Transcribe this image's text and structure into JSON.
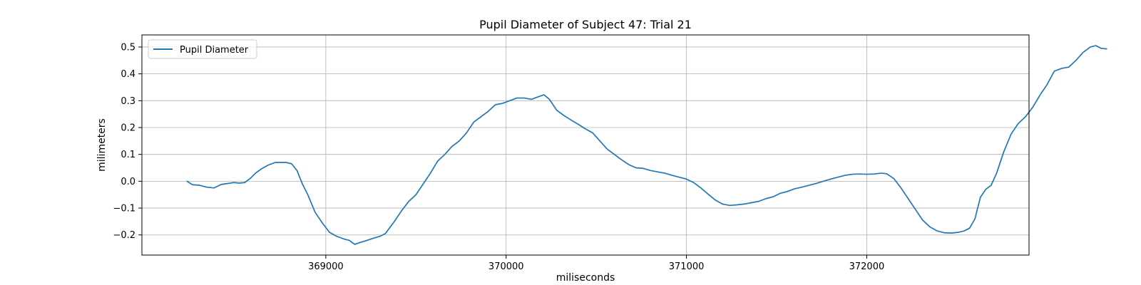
{
  "chart_data": {
    "type": "line",
    "title": "Pupil Diameter of Subject 47: Trial 21",
    "xlabel": "miliseconds",
    "ylabel": "milimeters",
    "xlim": [
      367980,
      372900
    ],
    "ylim": [
      -0.275,
      0.545
    ],
    "xticks": [
      369000,
      370000,
      371000,
      372000
    ],
    "yticks": [
      -0.2,
      -0.1,
      0.0,
      0.1,
      0.2,
      0.3,
      0.4,
      0.5
    ],
    "ytick_labels": [
      "−0.2",
      "−0.1",
      "0.0",
      "0.1",
      "0.2",
      "0.3",
      "0.4",
      "0.5"
    ],
    "grid": true,
    "legend": {
      "placement": "upper-left"
    },
    "series": [
      {
        "name": "Pupil Diameter",
        "color": "#1f77b4",
        "points": [
          [
            368230,
            0.0
          ],
          [
            368260,
            -0.013
          ],
          [
            368300,
            -0.015
          ],
          [
            368340,
            -0.022
          ],
          [
            368380,
            -0.025
          ],
          [
            368420,
            -0.012
          ],
          [
            368460,
            -0.008
          ],
          [
            368490,
            -0.005
          ],
          [
            368520,
            -0.007
          ],
          [
            368550,
            -0.005
          ],
          [
            368580,
            0.01
          ],
          [
            368610,
            0.03
          ],
          [
            368640,
            0.045
          ],
          [
            368680,
            0.06
          ],
          [
            368720,
            0.07
          ],
          [
            368780,
            0.07
          ],
          [
            368810,
            0.065
          ],
          [
            368840,
            0.04
          ],
          [
            368870,
            -0.01
          ],
          [
            368900,
            -0.05
          ],
          [
            368940,
            -0.115
          ],
          [
            368980,
            -0.155
          ],
          [
            369020,
            -0.19
          ],
          [
            369060,
            -0.205
          ],
          [
            369100,
            -0.215
          ],
          [
            369130,
            -0.22
          ],
          [
            369160,
            -0.235
          ],
          [
            369190,
            -0.228
          ],
          [
            369220,
            -0.222
          ],
          [
            369260,
            -0.213
          ],
          [
            369300,
            -0.205
          ],
          [
            369330,
            -0.195
          ],
          [
            369380,
            -0.15
          ],
          [
            369420,
            -0.11
          ],
          [
            369460,
            -0.075
          ],
          [
            369500,
            -0.05
          ],
          [
            369540,
            -0.01
          ],
          [
            369580,
            0.03
          ],
          [
            369620,
            0.075
          ],
          [
            369660,
            0.1
          ],
          [
            369700,
            0.13
          ],
          [
            369740,
            0.15
          ],
          [
            369780,
            0.18
          ],
          [
            369820,
            0.22
          ],
          [
            369860,
            0.24
          ],
          [
            369900,
            0.26
          ],
          [
            369940,
            0.285
          ],
          [
            369980,
            0.29
          ],
          [
            370020,
            0.3
          ],
          [
            370060,
            0.31
          ],
          [
            370100,
            0.31
          ],
          [
            370140,
            0.305
          ],
          [
            370180,
            0.315
          ],
          [
            370210,
            0.322
          ],
          [
            370240,
            0.305
          ],
          [
            370280,
            0.265
          ],
          [
            370320,
            0.245
          ],
          [
            370360,
            0.228
          ],
          [
            370400,
            0.212
          ],
          [
            370440,
            0.195
          ],
          [
            370480,
            0.18
          ],
          [
            370520,
            0.15
          ],
          [
            370560,
            0.12
          ],
          [
            370600,
            0.1
          ],
          [
            370640,
            0.08
          ],
          [
            370680,
            0.062
          ],
          [
            370720,
            0.05
          ],
          [
            370760,
            0.048
          ],
          [
            370800,
            0.04
          ],
          [
            370840,
            0.035
          ],
          [
            370880,
            0.03
          ],
          [
            370920,
            0.022
          ],
          [
            370960,
            0.015
          ],
          [
            371000,
            0.008
          ],
          [
            371040,
            -0.005
          ],
          [
            371080,
            -0.025
          ],
          [
            371120,
            -0.048
          ],
          [
            371160,
            -0.07
          ],
          [
            371200,
            -0.085
          ],
          [
            371240,
            -0.09
          ],
          [
            371280,
            -0.088
          ],
          [
            371320,
            -0.085
          ],
          [
            371360,
            -0.08
          ],
          [
            371400,
            -0.075
          ],
          [
            371440,
            -0.065
          ],
          [
            371480,
            -0.058
          ],
          [
            371520,
            -0.045
          ],
          [
            371560,
            -0.038
          ],
          [
            371600,
            -0.028
          ],
          [
            371640,
            -0.022
          ],
          [
            371680,
            -0.015
          ],
          [
            371720,
            -0.008
          ],
          [
            371760,
            0.0
          ],
          [
            371800,
            0.008
          ],
          [
            371840,
            0.015
          ],
          [
            371880,
            0.022
          ],
          [
            371920,
            0.026
          ],
          [
            371960,
            0.027
          ],
          [
            372000,
            0.026
          ],
          [
            372040,
            0.027
          ],
          [
            372080,
            0.03
          ],
          [
            372110,
            0.028
          ],
          [
            372150,
            0.01
          ],
          [
            372190,
            -0.025
          ],
          [
            372230,
            -0.065
          ],
          [
            372270,
            -0.105
          ],
          [
            372310,
            -0.145
          ],
          [
            372350,
            -0.17
          ],
          [
            372390,
            -0.185
          ],
          [
            372430,
            -0.192
          ],
          [
            372470,
            -0.193
          ],
          [
            372510,
            -0.19
          ],
          [
            372540,
            -0.185
          ],
          [
            372570,
            -0.175
          ],
          [
            372600,
            -0.14
          ],
          [
            372630,
            -0.06
          ],
          [
            372660,
            -0.03
          ],
          [
            372690,
            -0.015
          ],
          [
            372720,
            0.03
          ],
          [
            372760,
            0.11
          ],
          [
            372800,
            0.175
          ],
          [
            372840,
            0.215
          ],
          [
            372880,
            0.24
          ],
          [
            372920,
            0.275
          ],
          [
            372960,
            0.32
          ],
          [
            373000,
            0.36
          ],
          [
            373040,
            0.41
          ],
          [
            373080,
            0.42
          ],
          [
            373120,
            0.425
          ],
          [
            373160,
            0.45
          ],
          [
            373200,
            0.48
          ],
          [
            373240,
            0.5
          ],
          [
            373270,
            0.505
          ],
          [
            373300,
            0.495
          ],
          [
            373330,
            0.493
          ]
        ]
      }
    ]
  }
}
